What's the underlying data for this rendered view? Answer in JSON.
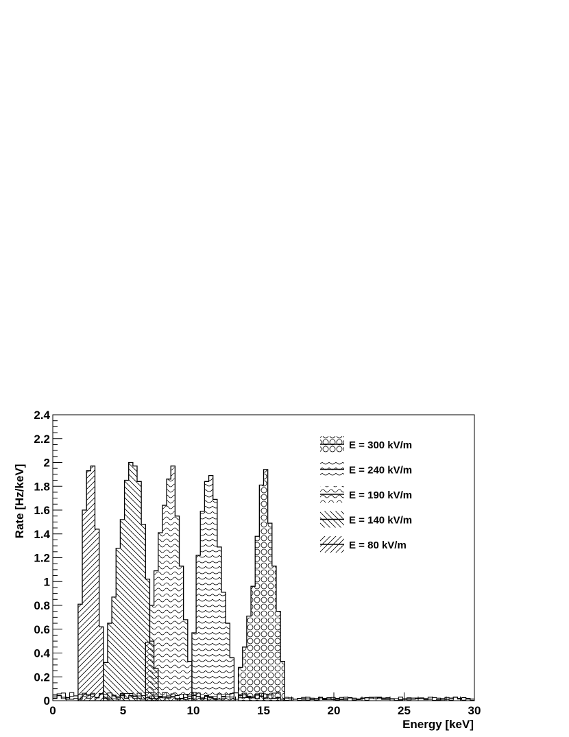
{
  "chart_data": {
    "type": "histogram",
    "xlabel": "Energy [keV]",
    "ylabel": "Rate [Hz/keV]",
    "xlim": [
      0,
      30
    ],
    "ylim": [
      0,
      2.4
    ],
    "bin_width": 0.3,
    "x_ticks": [
      "0",
      "5",
      "10",
      "15",
      "20",
      "25",
      "30"
    ],
    "y_ticks": [
      "0",
      "0.2",
      "0.4",
      "0.6",
      "0.8",
      "1",
      "1.2",
      "1.4",
      "1.6",
      "1.8",
      "2",
      "2.2",
      "2.4"
    ],
    "grid": false,
    "legend_position": "top-right",
    "series": [
      {
        "name": "E = 300 kV/m",
        "pattern": "circles",
        "bin_start": 13.2,
        "values": [
          0.28,
          0.45,
          0.71,
          0.96,
          1.38,
          1.81,
          1.94,
          1.49,
          1.13,
          0.75,
          0.33
        ]
      },
      {
        "name": "E = 240 kV/m",
        "pattern": "scallops",
        "bin_start": 9.9,
        "values": [
          0.57,
          1.22,
          1.59,
          1.84,
          1.89,
          1.69,
          1.29,
          0.91,
          0.65,
          0.36
        ]
      },
      {
        "name": "E = 190 kV/m",
        "pattern": "waves",
        "bin_start": 6.6,
        "values": [
          0.49,
          0.8,
          1.09,
          1.41,
          1.64,
          1.86,
          1.97,
          1.55,
          1.13,
          0.68,
          0.33
        ]
      },
      {
        "name": "E = 140 kV/m",
        "pattern": "diagonal-backslash",
        "bin_start": 3.6,
        "values": [
          0.32,
          0.65,
          0.87,
          1.28,
          1.52,
          1.85,
          2.0,
          1.97,
          1.84,
          1.48,
          1.02,
          0.5,
          0.27
        ]
      },
      {
        "name": "E = 80 kV/m",
        "pattern": "diagonal-slash",
        "bin_start": 1.8,
        "values": [
          0.81,
          1.6,
          1.93,
          1.97,
          1.44,
          0.62
        ]
      }
    ]
  }
}
